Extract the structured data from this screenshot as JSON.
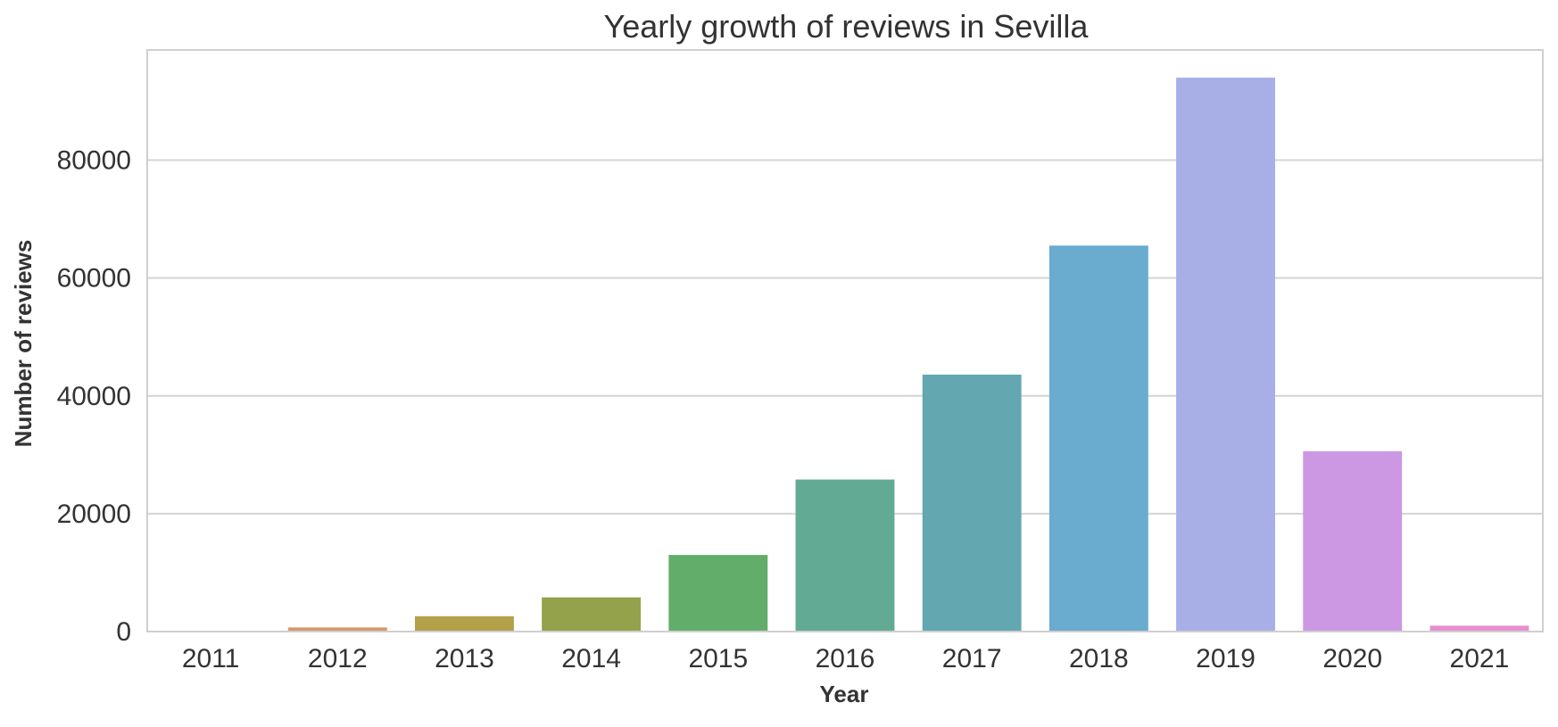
{
  "chart_data": {
    "type": "bar",
    "title": "Yearly growth of reviews in Sevilla",
    "xlabel": "Year",
    "ylabel": "Number of reviews",
    "categories": [
      "2011",
      "2012",
      "2013",
      "2014",
      "2015",
      "2016",
      "2017",
      "2018",
      "2019",
      "2020",
      "2021"
    ],
    "values": [
      100,
      700,
      2600,
      5800,
      13000,
      25800,
      43600,
      65500,
      94000,
      30600,
      1000
    ],
    "colors": [
      "#e8919a",
      "#d49a6a",
      "#b3a04b",
      "#93a24b",
      "#63ad6a",
      "#62aa93",
      "#63a8b0",
      "#6aabd0",
      "#a8afe6",
      "#cc98e3",
      "#e88fcf"
    ],
    "yticks": [
      0,
      20000,
      40000,
      60000,
      80000
    ],
    "ylim": [
      0,
      98700
    ],
    "grid": true,
    "legend": "none"
  }
}
